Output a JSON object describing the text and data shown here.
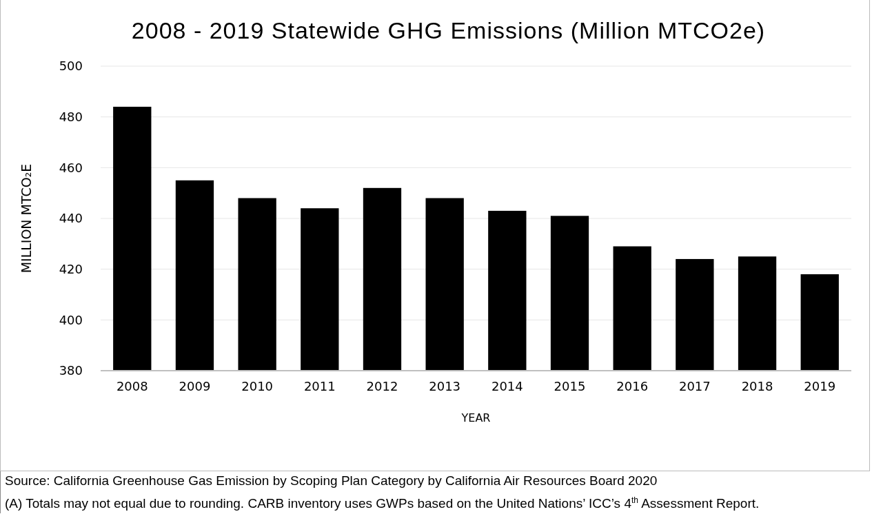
{
  "chart_data": {
    "type": "bar",
    "title": "2008 - 2019 Statewide GHG Emissions (Million MTCO2e)",
    "xlabel": "YEAR",
    "ylabel": "MILLION MTCO₂E",
    "categories": [
      "2008",
      "2009",
      "2010",
      "2011",
      "2012",
      "2013",
      "2014",
      "2015",
      "2016",
      "2017",
      "2018",
      "2019"
    ],
    "values": [
      484,
      455,
      448,
      444,
      452,
      448,
      443,
      441,
      429,
      424,
      425,
      418
    ],
    "color": "#000000",
    "ylim": [
      380,
      500
    ],
    "yticks": [
      380,
      400,
      420,
      440,
      460,
      480,
      500
    ],
    "grid": "y",
    "annotations": [
      "Source: California Greenhouse Gas Emission by Scoping Plan Category by California Air Resources Board 2020",
      "(A)  Totals may not equal due to rounding. CARB inventory uses GWPs based on the United Nations’ ICC’s 4$^{th}$ Assessment Report."
    ]
  }
}
